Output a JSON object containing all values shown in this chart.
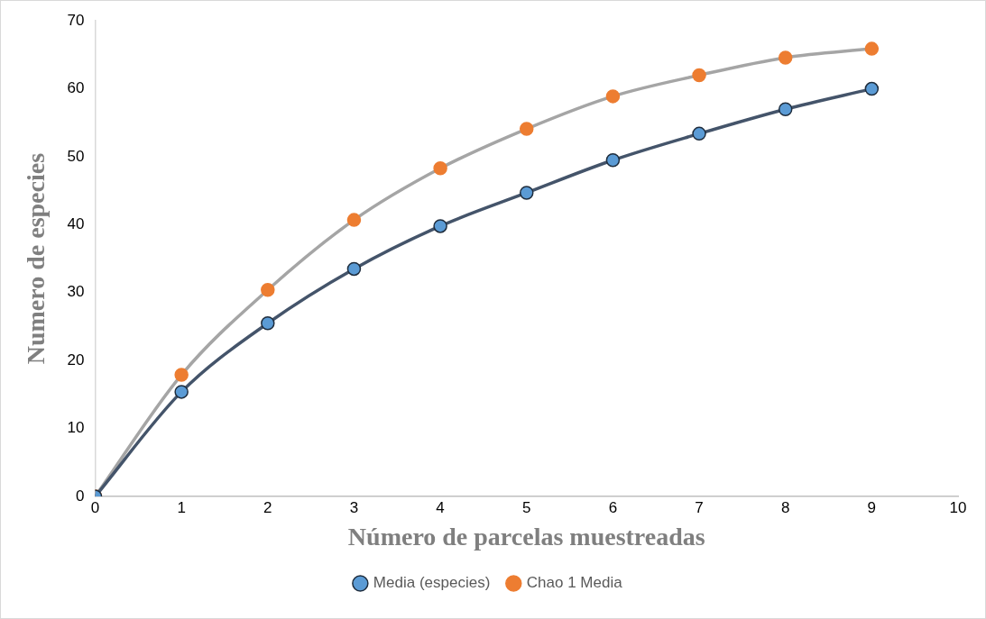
{
  "chart_data": {
    "type": "line",
    "xlabel": "Número de parcelas muestreadas",
    "ylabel": "Numero de especies",
    "x": [
      0,
      1,
      2,
      3,
      4,
      5,
      6,
      7,
      8,
      9
    ],
    "series": [
      {
        "name": "Media (especies)",
        "color": "#44546a",
        "values": [
          0,
          15.4,
          25.5,
          33.5,
          39.8,
          44.7,
          49.5,
          53.4,
          57.0,
          60.0
        ]
      },
      {
        "name": "Chao 1 Media",
        "color": "#a5a5a5",
        "values": [
          0,
          17.9,
          30.4,
          40.7,
          48.3,
          54.1,
          58.9,
          62.0,
          64.6,
          65.9
        ]
      }
    ],
    "xlim": [
      0,
      10
    ],
    "xticks": [
      0,
      1,
      2,
      3,
      4,
      5,
      6,
      7,
      8,
      9,
      10
    ],
    "ylim": [
      0,
      70
    ],
    "yticks": [
      0,
      10,
      20,
      30,
      40,
      50,
      60,
      70
    ],
    "grid": false,
    "legend": "bottom",
    "marker": "circle",
    "line_style": "solid"
  }
}
